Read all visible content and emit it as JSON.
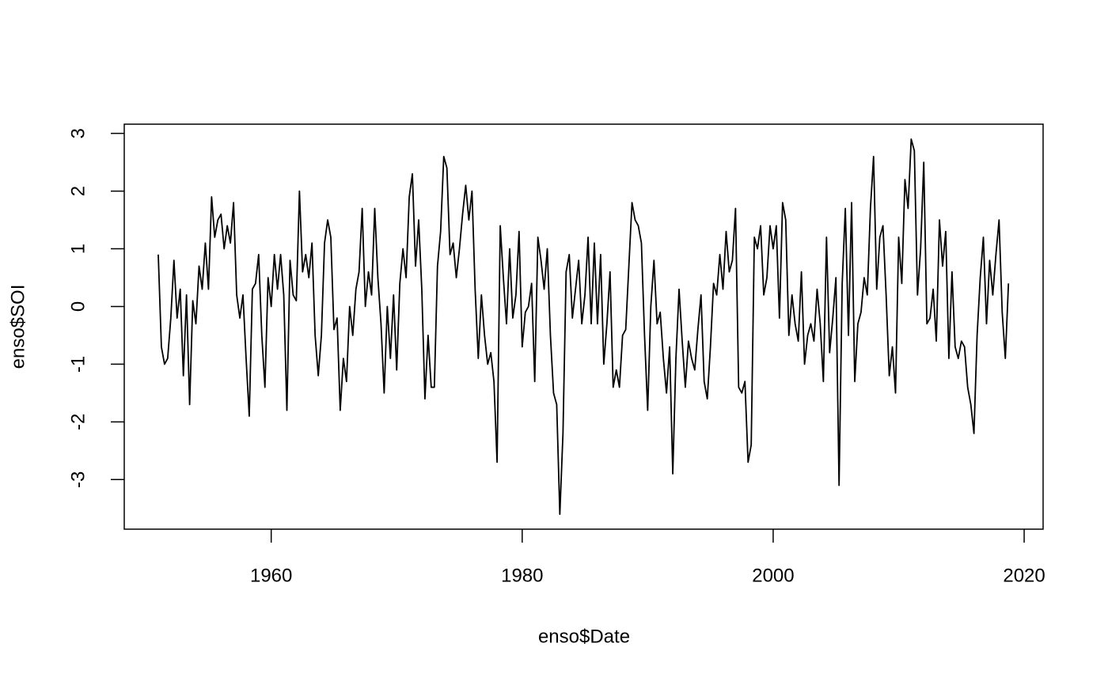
{
  "chart_data": {
    "type": "line",
    "x_label": "enso$Date",
    "y_label": "enso$SOI",
    "xlim": [
      1948.29,
      2021.51
    ],
    "ylim": [
      -3.86,
      3.16
    ],
    "xticks": [
      1960,
      1980,
      2000,
      2020
    ],
    "yticks": [
      -3,
      -2,
      -1,
      0,
      1,
      2,
      3
    ],
    "color": "#000000",
    "x": [
      1951,
      1951.25,
      1951.5,
      1951.75,
      1952,
      1952.25,
      1952.5,
      1952.75,
      1953,
      1953.25,
      1953.5,
      1953.75,
      1954,
      1954.25,
      1954.5,
      1954.75,
      1955,
      1955.25,
      1955.5,
      1955.75,
      1956,
      1956.25,
      1956.5,
      1956.75,
      1957,
      1957.25,
      1957.5,
      1957.75,
      1958,
      1958.25,
      1958.5,
      1958.75,
      1959,
      1959.25,
      1959.5,
      1959.75,
      1960,
      1960.25,
      1960.5,
      1960.75,
      1961,
      1961.25,
      1961.5,
      1961.75,
      1962,
      1962.25,
      1962.5,
      1962.75,
      1963,
      1963.25,
      1963.5,
      1963.75,
      1964,
      1964.25,
      1964.5,
      1964.75,
      1965,
      1965.25,
      1965.5,
      1965.75,
      1966,
      1966.25,
      1966.5,
      1966.75,
      1967,
      1967.25,
      1967.5,
      1967.75,
      1968,
      1968.25,
      1968.5,
      1968.75,
      1969,
      1969.25,
      1969.5,
      1969.75,
      1970,
      1970.25,
      1970.5,
      1970.75,
      1971,
      1971.25,
      1971.5,
      1971.75,
      1972,
      1972.25,
      1972.5,
      1972.75,
      1973,
      1973.25,
      1973.5,
      1973.75,
      1974,
      1974.25,
      1974.5,
      1974.75,
      1975,
      1975.25,
      1975.5,
      1975.75,
      1976,
      1976.25,
      1976.5,
      1976.75,
      1977,
      1977.25,
      1977.5,
      1977.75,
      1978,
      1978.25,
      1978.5,
      1978.75,
      1979,
      1979.25,
      1979.5,
      1979.75,
      1980,
      1980.25,
      1980.5,
      1980.75,
      1981,
      1981.25,
      1981.5,
      1981.75,
      1982,
      1982.25,
      1982.5,
      1982.75,
      1983,
      1983.25,
      1983.5,
      1983.75,
      1984,
      1984.25,
      1984.5,
      1984.75,
      1985,
      1985.25,
      1985.5,
      1985.75,
      1986,
      1986.25,
      1986.5,
      1986.75,
      1987,
      1987.25,
      1987.5,
      1987.75,
      1988,
      1988.25,
      1988.5,
      1988.75,
      1989,
      1989.25,
      1989.5,
      1989.75,
      1990,
      1990.25,
      1990.5,
      1990.75,
      1991,
      1991.25,
      1991.5,
      1991.75,
      1992,
      1992.25,
      1992.5,
      1992.75,
      1993,
      1993.25,
      1993.5,
      1993.75,
      1994,
      1994.25,
      1994.5,
      1994.75,
      1995,
      1995.25,
      1995.5,
      1995.75,
      1996,
      1996.25,
      1996.5,
      1996.75,
      1997,
      1997.25,
      1997.5,
      1997.75,
      1998,
      1998.25,
      1998.5,
      1998.75,
      1999,
      1999.25,
      1999.5,
      1999.75,
      2000,
      2000.25,
      2000.5,
      2000.75,
      2001,
      2001.25,
      2001.5,
      2001.75,
      2002,
      2002.25,
      2002.5,
      2002.75,
      2003,
      2003.25,
      2003.5,
      2003.75,
      2004,
      2004.25,
      2004.5,
      2004.75,
      2005,
      2005.25,
      2005.5,
      2005.75,
      2006,
      2006.25,
      2006.5,
      2006.75,
      2007,
      2007.25,
      2007.5,
      2007.75,
      2008,
      2008.25,
      2008.5,
      2008.75,
      2009,
      2009.25,
      2009.5,
      2009.75,
      2010,
      2010.25,
      2010.5,
      2010.75,
      2011,
      2011.25,
      2011.5,
      2011.75,
      2012,
      2012.25,
      2012.5,
      2012.75,
      2013,
      2013.25,
      2013.5,
      2013.75,
      2014,
      2014.25,
      2014.5,
      2014.75,
      2015,
      2015.25,
      2015.5,
      2015.75,
      2016,
      2016.25,
      2016.5,
      2016.75,
      2017,
      2017.25,
      2017.5,
      2017.75,
      2018,
      2018.25,
      2018.5,
      2018.75
    ],
    "values": [
      0.9,
      -0.7,
      -1.0,
      -0.9,
      -0.2,
      0.8,
      -0.2,
      0.3,
      -1.2,
      0.2,
      -1.7,
      0.1,
      -0.3,
      0.7,
      0.3,
      1.1,
      0.3,
      1.9,
      1.2,
      1.5,
      1.6,
      1.0,
      1.4,
      1.1,
      1.8,
      0.2,
      -0.2,
      0.2,
      -0.9,
      -1.9,
      0.3,
      0.4,
      0.9,
      -0.5,
      -1.4,
      0.5,
      0.0,
      0.9,
      0.3,
      0.9,
      0.2,
      -1.8,
      0.8,
      0.2,
      0.1,
      2.0,
      0.6,
      0.9,
      0.5,
      1.1,
      -0.5,
      -1.2,
      -0.5,
      1.1,
      1.5,
      1.2,
      -0.4,
      -0.2,
      -1.8,
      -0.9,
      -1.3,
      0.0,
      -0.5,
      0.3,
      0.6,
      1.7,
      0.0,
      0.6,
      0.2,
      1.7,
      0.5,
      -0.3,
      -1.5,
      0.0,
      -0.9,
      0.2,
      -1.1,
      0.4,
      1.0,
      0.5,
      1.9,
      2.3,
      0.7,
      1.5,
      0.3,
      -1.6,
      -0.5,
      -1.4,
      -1.4,
      0.7,
      1.3,
      2.6,
      2.4,
      0.9,
      1.1,
      0.5,
      1.0,
      1.6,
      2.1,
      1.5,
      2.0,
      0.3,
      -0.9,
      0.2,
      -0.5,
      -1.0,
      -0.8,
      -1.3,
      -2.7,
      1.4,
      0.5,
      -0.3,
      1.0,
      -0.2,
      0.2,
      1.3,
      -0.7,
      -0.1,
      0.0,
      0.4,
      -1.3,
      1.2,
      0.8,
      0.3,
      1.0,
      -0.5,
      -1.5,
      -1.7,
      -3.6,
      -2.2,
      0.6,
      0.9,
      -0.2,
      0.3,
      0.8,
      -0.3,
      0.2,
      1.2,
      -0.3,
      1.1,
      -0.3,
      0.9,
      -1.0,
      -0.3,
      0.6,
      -1.4,
      -1.1,
      -1.4,
      -0.5,
      -0.4,
      0.7,
      1.8,
      1.5,
      1.4,
      1.1,
      -0.5,
      -1.8,
      0.0,
      0.8,
      -0.3,
      -0.1,
      -0.9,
      -1.5,
      -0.7,
      -2.9,
      -0.9,
      0.3,
      -0.6,
      -1.4,
      -0.6,
      -0.9,
      -1.1,
      -0.4,
      0.2,
      -1.3,
      -1.6,
      -0.7,
      0.4,
      0.2,
      0.9,
      0.3,
      1.3,
      0.6,
      0.8,
      1.7,
      -1.4,
      -1.5,
      -1.3,
      -2.7,
      -2.4,
      1.2,
      1.0,
      1.4,
      0.2,
      0.5,
      1.4,
      1.0,
      1.4,
      -0.2,
      1.8,
      1.5,
      -0.5,
      0.2,
      -0.3,
      -0.6,
      0.6,
      -1.0,
      -0.5,
      -0.3,
      -0.6,
      0.3,
      -0.3,
      -1.3,
      1.2,
      -0.8,
      -0.2,
      0.5,
      -3.1,
      0.4,
      1.7,
      -0.5,
      1.8,
      -1.3,
      -0.3,
      -0.1,
      0.5,
      0.2,
      1.7,
      2.6,
      0.3,
      1.2,
      1.4,
      0.2,
      -1.2,
      -0.7,
      -1.5,
      1.2,
      0.4,
      2.2,
      1.7,
      2.9,
      2.7,
      0.2,
      1.0,
      2.5,
      -0.3,
      -0.2,
      0.3,
      -0.6,
      1.5,
      0.7,
      1.3,
      -0.9,
      0.6,
      -0.7,
      -0.9,
      -0.6,
      -0.7,
      -1.4,
      -1.7,
      -2.2,
      -0.5,
      0.5,
      1.2,
      -0.3,
      0.8,
      0.2,
      0.9,
      1.5,
      -0.1,
      -0.9,
      0.4
    ]
  }
}
